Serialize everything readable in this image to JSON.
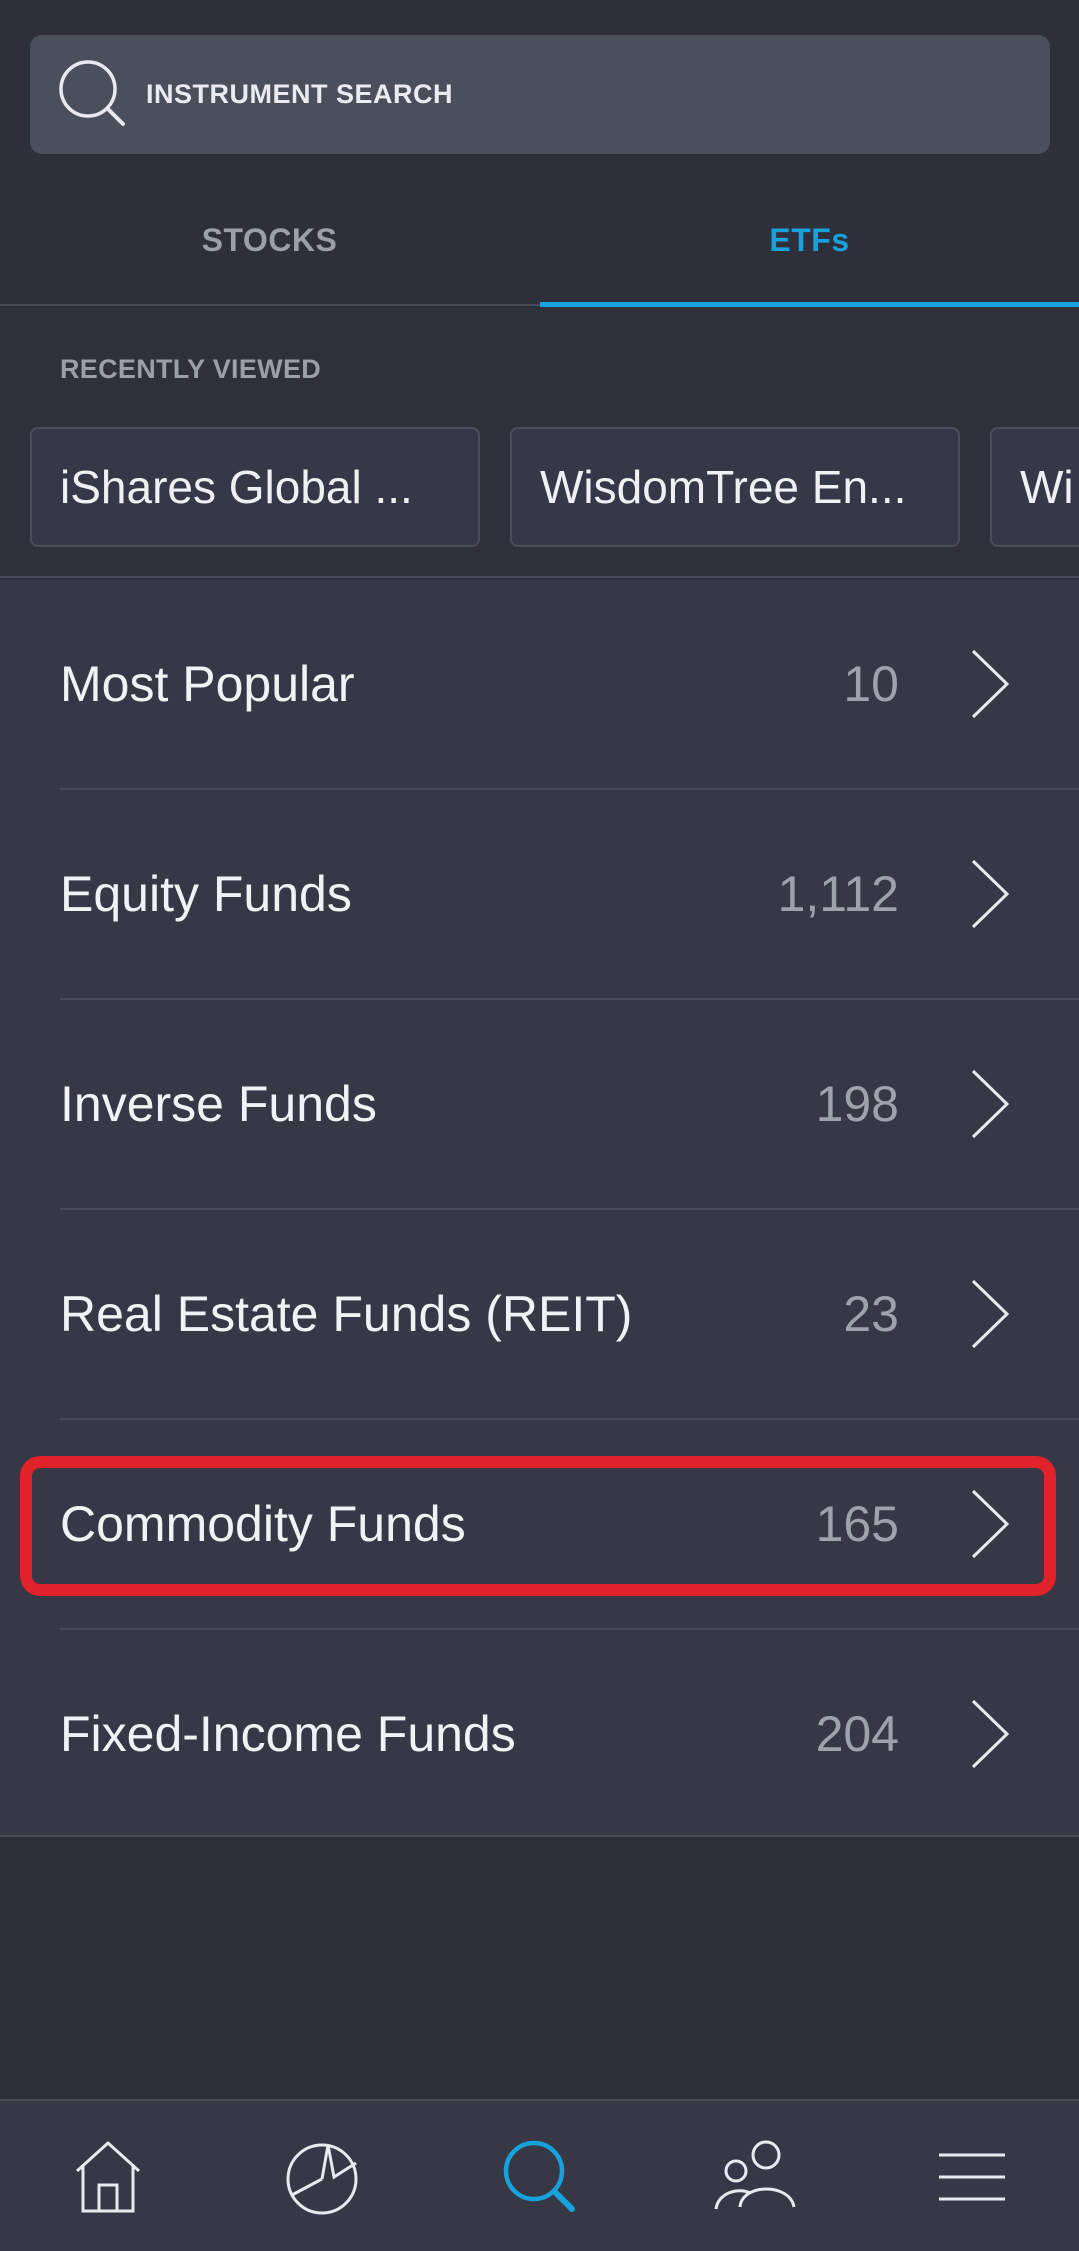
{
  "search": {
    "label": "INSTRUMENT SEARCH"
  },
  "tabs": [
    {
      "label": "STOCKS",
      "active": false
    },
    {
      "label": "ETFs",
      "active": true
    }
  ],
  "recently_viewed": {
    "title": "RECENTLY VIEWED",
    "items": [
      "iShares Global ...",
      "WisdomTree En...",
      "Wi"
    ]
  },
  "categories": [
    {
      "label": "Most Popular",
      "count": "10"
    },
    {
      "label": "Equity Funds",
      "count": "1,112"
    },
    {
      "label": "Inverse Funds",
      "count": "198"
    },
    {
      "label": "Real Estate Funds (REIT)",
      "count": "23"
    },
    {
      "label": "Commodity Funds",
      "count": "165",
      "highlighted": true
    },
    {
      "label": "Fixed-Income Funds",
      "count": "204"
    }
  ],
  "bottom_nav": [
    {
      "icon": "home-icon",
      "active": false
    },
    {
      "icon": "portfolio-pie-icon",
      "active": false
    },
    {
      "icon": "search-icon",
      "active": true
    },
    {
      "icon": "people-icon",
      "active": false
    },
    {
      "icon": "menu-icon",
      "active": false
    }
  ],
  "colors": {
    "accent": "#17a2db",
    "background": "#2d2f3b",
    "list_background": "#363846",
    "highlight": "#e0222b"
  }
}
